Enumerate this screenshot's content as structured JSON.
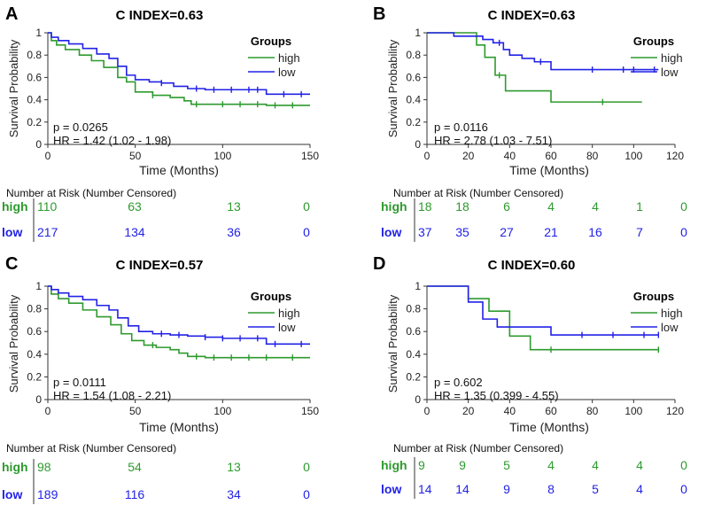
{
  "chart_data": [
    {
      "type": "line",
      "panel_label": "A",
      "title": "C INDEX=0.63",
      "xlabel": "Time (Months)",
      "ylabel": "Survival Probability",
      "xlim": [
        0,
        150
      ],
      "ylim": [
        0,
        1
      ],
      "xticks": [
        0,
        50,
        100,
        150
      ],
      "yticks": [
        0,
        0.2,
        0.4,
        0.6,
        0.8,
        1
      ],
      "y_tick_labels": [
        "0",
        "0.2",
        "0.4",
        "0.6",
        "0.8",
        "1"
      ],
      "legend": {
        "title": "Groups",
        "entries": [
          "high",
          "low"
        ]
      },
      "p_value": "p = 0.0265",
      "hr": "HR = 1.42 (1.02 - 1.98)",
      "series": [
        {
          "name": "high",
          "color": "#2e9a2e",
          "x": [
            0,
            2,
            5,
            10,
            18,
            25,
            32,
            40,
            45,
            50,
            60,
            70,
            78,
            82,
            90,
            100,
            125,
            150
          ],
          "y": [
            1,
            0.93,
            0.89,
            0.85,
            0.8,
            0.75,
            0.69,
            0.6,
            0.56,
            0.47,
            0.44,
            0.42,
            0.39,
            0.36,
            0.36,
            0.36,
            0.35,
            0.35
          ],
          "censored_x": [
            60,
            85,
            100,
            110,
            120,
            130,
            140
          ]
        },
        {
          "name": "low",
          "color": "#2222e6",
          "x": [
            0,
            2,
            6,
            12,
            20,
            28,
            35,
            40,
            45,
            50,
            58,
            65,
            72,
            80,
            90,
            100,
            125,
            150
          ],
          "y": [
            1,
            0.96,
            0.93,
            0.9,
            0.86,
            0.81,
            0.77,
            0.7,
            0.62,
            0.58,
            0.56,
            0.55,
            0.52,
            0.5,
            0.49,
            0.49,
            0.45,
            0.45
          ],
          "censored_x": [
            65,
            85,
            95,
            105,
            115,
            120,
            135,
            145
          ]
        }
      ],
      "risk_table": {
        "header": "Number at Risk (Number Censored)",
        "x": [
          0,
          50,
          100,
          150
        ],
        "rows": [
          {
            "group": "high",
            "values": [
              "110",
              "63",
              "13",
              "0"
            ]
          },
          {
            "group": "low",
            "values": [
              "217",
              "134",
              "36",
              "0"
            ]
          }
        ]
      }
    },
    {
      "type": "line",
      "panel_label": "B",
      "title": "C INDEX=0.63",
      "xlabel": "Time (Months)",
      "ylabel": "Survival Probability",
      "xlim": [
        0,
        120
      ],
      "ylim": [
        0,
        1
      ],
      "xticks": [
        0,
        20,
        40,
        60,
        80,
        100,
        120
      ],
      "yticks": [
        0,
        0.2,
        0.4,
        0.6,
        0.8,
        1
      ],
      "y_tick_labels": [
        "0",
        "0.2",
        "0.4",
        "0.6",
        "0.8",
        "1"
      ],
      "legend": {
        "title": "Groups",
        "entries": [
          "high",
          "low"
        ]
      },
      "p_value": "p = 0.0116",
      "hr": "HR = 2.78 (1.03 - 7.51)",
      "series": [
        {
          "name": "high",
          "color": "#2e9a2e",
          "x": [
            0,
            20,
            24,
            28,
            33,
            38,
            60,
            104
          ],
          "y": [
            1,
            1,
            0.89,
            0.78,
            0.62,
            0.48,
            0.38,
            0.38
          ],
          "censored_x": [
            35,
            85
          ]
        },
        {
          "name": "low",
          "color": "#2222e6",
          "x": [
            0,
            13,
            27,
            32,
            37,
            40,
            46,
            52,
            60,
            112
          ],
          "y": [
            1,
            0.97,
            0.94,
            0.91,
            0.85,
            0.8,
            0.77,
            0.74,
            0.67,
            0.67
          ],
          "censored_x": [
            35,
            55,
            80,
            95,
            100,
            110
          ]
        }
      ],
      "risk_table": {
        "header": "Number at Risk (Number Censored)",
        "x": [
          0,
          20,
          40,
          60,
          80,
          100,
          120
        ],
        "rows": [
          {
            "group": "high",
            "values": [
              "18",
              "18",
              "6",
              "4",
              "4",
              "1",
              "0"
            ]
          },
          {
            "group": "low",
            "values": [
              "37",
              "35",
              "27",
              "21",
              "16",
              "7",
              "0"
            ]
          }
        ]
      }
    },
    {
      "type": "line",
      "panel_label": "C",
      "title": "C INDEX=0.57",
      "xlabel": "Time (Months)",
      "ylabel": "Survival Probability",
      "xlim": [
        0,
        150
      ],
      "ylim": [
        0,
        1
      ],
      "xticks": [
        0,
        50,
        100,
        150
      ],
      "yticks": [
        0,
        0.2,
        0.4,
        0.6,
        0.8,
        1
      ],
      "y_tick_labels": [
        "0",
        "0.2",
        "0.4",
        "0.6",
        "0.8",
        "1"
      ],
      "legend": {
        "title": "Groups",
        "entries": [
          "high",
          "low"
        ]
      },
      "p_value": "p = 0.0111",
      "hr": "HR = 1.54 (1.08 - 2.21)",
      "series": [
        {
          "name": "high",
          "color": "#2e9a2e",
          "x": [
            0,
            2,
            6,
            12,
            20,
            28,
            36,
            42,
            48,
            55,
            62,
            70,
            75,
            80,
            90,
            100,
            125,
            150
          ],
          "y": [
            1,
            0.93,
            0.89,
            0.85,
            0.79,
            0.73,
            0.66,
            0.58,
            0.52,
            0.48,
            0.46,
            0.44,
            0.41,
            0.38,
            0.37,
            0.37,
            0.37,
            0.37
          ],
          "censored_x": [
            60,
            85,
            95,
            105,
            115,
            125,
            140
          ]
        },
        {
          "name": "low",
          "color": "#2222e6",
          "x": [
            0,
            2,
            6,
            12,
            20,
            28,
            35,
            40,
            46,
            52,
            60,
            70,
            80,
            90,
            100,
            125,
            150
          ],
          "y": [
            1,
            0.97,
            0.94,
            0.91,
            0.88,
            0.83,
            0.79,
            0.72,
            0.65,
            0.6,
            0.58,
            0.57,
            0.56,
            0.55,
            0.54,
            0.49,
            0.49
          ],
          "censored_x": [
            65,
            75,
            90,
            100,
            110,
            120,
            130,
            145
          ]
        }
      ],
      "risk_table": {
        "header": "Number at Risk (Number Censored)",
        "x": [
          0,
          50,
          100,
          150
        ],
        "rows": [
          {
            "group": "high",
            "values": [
              "98",
              "54",
              "13",
              "0"
            ]
          },
          {
            "group": "low",
            "values": [
              "189",
              "116",
              "34",
              "0"
            ]
          }
        ]
      }
    },
    {
      "type": "line",
      "panel_label": "D",
      "title": "C INDEX=0.60",
      "xlabel": "Time (Months)",
      "ylabel": "Survival Probability",
      "xlim": [
        0,
        120
      ],
      "ylim": [
        0,
        1
      ],
      "xticks": [
        0,
        20,
        40,
        60,
        80,
        100,
        120
      ],
      "yticks": [
        0,
        0.2,
        0.4,
        0.6,
        0.8,
        1
      ],
      "y_tick_labels": [
        "0",
        "0.2",
        "0.4",
        "0.6",
        "0.8",
        "1"
      ],
      "legend": {
        "title": "Groups",
        "entries": [
          "high",
          "low"
        ]
      },
      "p_value": "p = 0.602",
      "hr": "HR = 1.35 (0.399 - 4.55)",
      "series": [
        {
          "name": "high",
          "color": "#2e9a2e",
          "x": [
            0,
            20,
            30,
            40,
            50,
            112
          ],
          "y": [
            1,
            0.89,
            0.78,
            0.56,
            0.44,
            0.44
          ],
          "censored_x": [
            60,
            112
          ]
        },
        {
          "name": "low",
          "color": "#2222e6",
          "x": [
            0,
            20,
            27,
            34,
            40,
            60,
            112
          ],
          "y": [
            1,
            0.86,
            0.71,
            0.64,
            0.64,
            0.57,
            0.57
          ],
          "censored_x": [
            75,
            90,
            105,
            112
          ]
        }
      ],
      "risk_table": {
        "header": "Number at Risk (Number Censored)",
        "x": [
          0,
          20,
          40,
          60,
          80,
          100,
          120
        ],
        "rows": [
          {
            "group": "high",
            "values": [
              "9",
              "9",
              "5",
              "4",
              "4",
              "4",
              "0"
            ]
          },
          {
            "group": "low",
            "values": [
              "14",
              "14",
              "9",
              "8",
              "5",
              "4",
              "0"
            ]
          }
        ]
      }
    }
  ]
}
